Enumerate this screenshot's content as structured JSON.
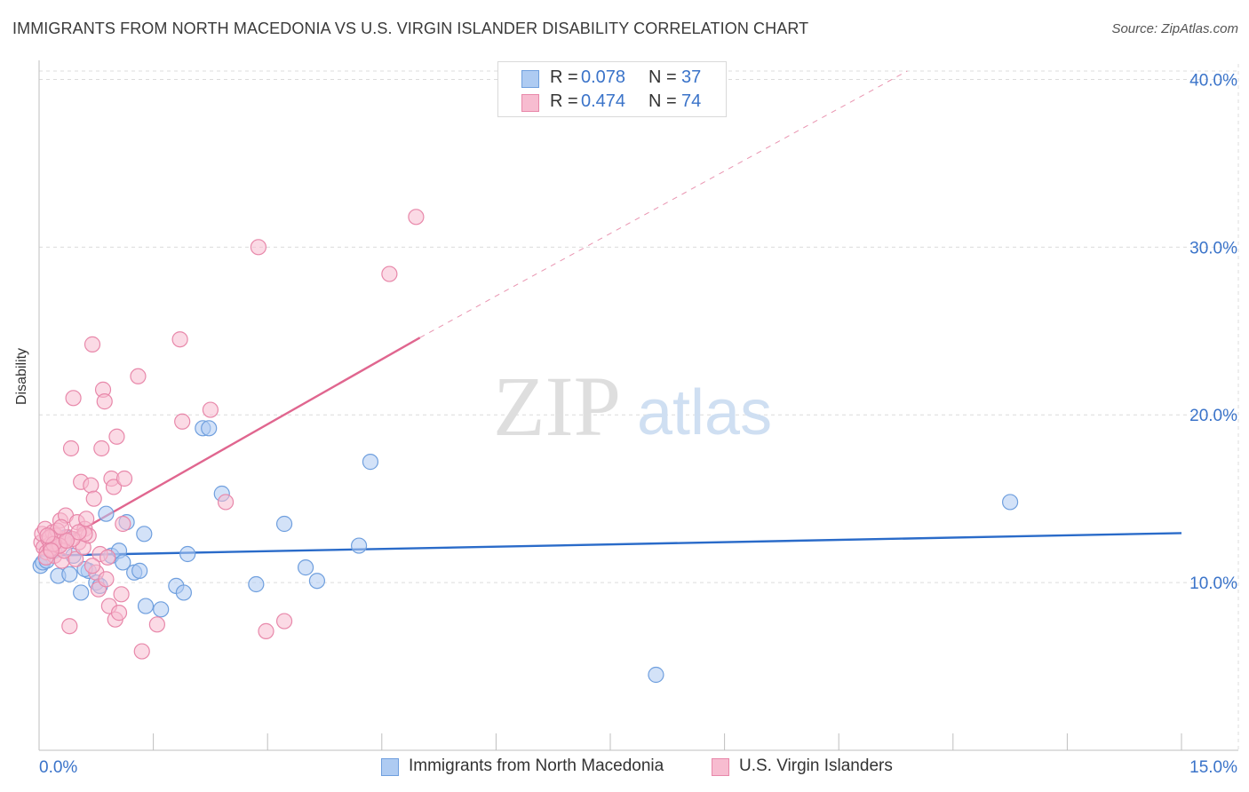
{
  "title": "IMMIGRANTS FROM NORTH MACEDONIA VS U.S. VIRGIN ISLANDER DISABILITY CORRELATION CHART",
  "source": "Source: ZipAtlas.com",
  "watermark": {
    "zip": "ZIP",
    "atlas": "atlas"
  },
  "colors": {
    "blue_fill": "#aecbf2",
    "blue_stroke": "#6f9fde",
    "blue_line": "#2a6bc9",
    "pink_fill": "#f7bcd0",
    "pink_stroke": "#e888aa",
    "pink_line": "#e0668f",
    "grid": "#dcdcdc",
    "tick_text": "#3a73c9"
  },
  "legend": {
    "series": [
      {
        "r_label": "R =",
        "r_value": "0.078",
        "n_label": "N =",
        "n_value": "37"
      },
      {
        "r_label": "R =",
        "r_value": "0.474",
        "n_label": "N =",
        "n_value": "74"
      }
    ]
  },
  "bottom_legend": [
    "Immigrants from North Macedonia",
    "U.S. Virgin Islanders"
  ],
  "chart_data": {
    "type": "scatter",
    "title": "IMMIGRANTS FROM NORTH MACEDONIA VS U.S. VIRGIN ISLANDER DISABILITY CORRELATION CHART",
    "xlabel": "",
    "ylabel": "Disability",
    "xlim": [
      0,
      15
    ],
    "ylim": [
      0,
      40.5
    ],
    "x_tick_labels": [
      {
        "value": 0,
        "label": "0.0%"
      },
      {
        "value": 15,
        "label": "15.0%"
      }
    ],
    "y_tick_labels": [
      {
        "value": 10,
        "label": "10.0%"
      },
      {
        "value": 20,
        "label": "20.0%"
      },
      {
        "value": 30,
        "label": "30.0%"
      },
      {
        "value": 40,
        "label": "40.0%"
      }
    ],
    "y_gridlines": [
      10,
      20,
      30,
      40
    ],
    "x_minor_ticks": [
      0,
      1.5,
      3,
      4.5,
      6,
      7.5,
      9,
      10.5,
      12,
      13.5,
      15
    ],
    "grid": true,
    "series": [
      {
        "name": "Immigrants from North Macedonia",
        "color": "blue",
        "r": 0.078,
        "n": 37,
        "trendline": {
          "x": [
            0,
            15
          ],
          "y": [
            11.6,
            12.95
          ],
          "dashed_extension": false
        },
        "points": [
          [
            0.02,
            11.0
          ],
          [
            0.05,
            11.2
          ],
          [
            0.1,
            11.3
          ],
          [
            0.2,
            11.9
          ],
          [
            0.25,
            10.4
          ],
          [
            0.35,
            12.7
          ],
          [
            0.4,
            10.5
          ],
          [
            0.45,
            11.6
          ],
          [
            0.55,
            9.4
          ],
          [
            0.65,
            10.7
          ],
          [
            0.75,
            10.0
          ],
          [
            0.8,
            9.8
          ],
          [
            0.88,
            14.1
          ],
          [
            0.95,
            11.6
          ],
          [
            1.05,
            11.9
          ],
          [
            1.1,
            11.2
          ],
          [
            1.15,
            13.6
          ],
          [
            1.25,
            10.6
          ],
          [
            1.32,
            10.7
          ],
          [
            1.4,
            8.6
          ],
          [
            1.38,
            12.9
          ],
          [
            1.6,
            8.4
          ],
          [
            1.8,
            9.8
          ],
          [
            1.9,
            9.4
          ],
          [
            1.95,
            11.7
          ],
          [
            2.15,
            19.2
          ],
          [
            2.23,
            19.2
          ],
          [
            2.4,
            15.3
          ],
          [
            2.85,
            9.9
          ],
          [
            3.22,
            13.5
          ],
          [
            3.5,
            10.9
          ],
          [
            3.65,
            10.1
          ],
          [
            4.2,
            12.2
          ],
          [
            4.35,
            17.2
          ],
          [
            8.1,
            4.5
          ],
          [
            12.75,
            14.8
          ],
          [
            0.6,
            10.8
          ]
        ]
      },
      {
        "name": "U.S. Virgin Islanders",
        "color": "pink",
        "r": 0.474,
        "n": 74,
        "trendline": {
          "x": [
            0,
            5.0
          ],
          "y": [
            11.7,
            24.6
          ],
          "dashed_extension": true,
          "dashed_to": [
            11.4,
            40.5
          ]
        },
        "points": [
          [
            0.03,
            12.4
          ],
          [
            0.04,
            12.9
          ],
          [
            0.06,
            12.1
          ],
          [
            0.08,
            13.2
          ],
          [
            0.1,
            11.8
          ],
          [
            0.12,
            12.6
          ],
          [
            0.15,
            12.3
          ],
          [
            0.18,
            13.0
          ],
          [
            0.2,
            11.6
          ],
          [
            0.22,
            12.8
          ],
          [
            0.25,
            12.2
          ],
          [
            0.28,
            13.7
          ],
          [
            0.3,
            11.3
          ],
          [
            0.32,
            12.5
          ],
          [
            0.35,
            14.0
          ],
          [
            0.38,
            12.7
          ],
          [
            0.4,
            7.4
          ],
          [
            0.42,
            18.0
          ],
          [
            0.45,
            21.0
          ],
          [
            0.48,
            11.4
          ],
          [
            0.5,
            13.6
          ],
          [
            0.52,
            12.4
          ],
          [
            0.55,
            16.0
          ],
          [
            0.58,
            12.1
          ],
          [
            0.6,
            13.2
          ],
          [
            0.62,
            13.8
          ],
          [
            0.65,
            12.8
          ],
          [
            0.68,
            15.8
          ],
          [
            0.7,
            24.2
          ],
          [
            0.72,
            15.0
          ],
          [
            0.75,
            10.6
          ],
          [
            0.78,
            9.6
          ],
          [
            0.8,
            11.7
          ],
          [
            0.82,
            18.0
          ],
          [
            0.84,
            21.5
          ],
          [
            0.86,
            20.8
          ],
          [
            0.88,
            10.2
          ],
          [
            0.9,
            11.5
          ],
          [
            0.92,
            8.6
          ],
          [
            0.95,
            16.2
          ],
          [
            0.98,
            15.7
          ],
          [
            1.0,
            7.8
          ],
          [
            1.02,
            18.7
          ],
          [
            1.05,
            8.2
          ],
          [
            1.08,
            9.3
          ],
          [
            1.1,
            13.5
          ],
          [
            1.12,
            16.2
          ],
          [
            1.3,
            22.3
          ],
          [
            1.35,
            5.9
          ],
          [
            1.55,
            7.5
          ],
          [
            1.85,
            24.5
          ],
          [
            1.88,
            19.6
          ],
          [
            2.25,
            20.3
          ],
          [
            2.45,
            14.8
          ],
          [
            2.88,
            30.0
          ],
          [
            2.98,
            7.1
          ],
          [
            3.22,
            7.7
          ],
          [
            4.6,
            28.4
          ],
          [
            4.95,
            31.8
          ],
          [
            0.6,
            12.9
          ],
          [
            0.15,
            12.0
          ],
          [
            0.24,
            13.1
          ],
          [
            0.33,
            11.9
          ],
          [
            0.44,
            12.6
          ],
          [
            0.14,
            12.7
          ],
          [
            0.52,
            13.0
          ],
          [
            0.27,
            12.2
          ],
          [
            0.09,
            11.5
          ],
          [
            0.19,
            12.3
          ],
          [
            0.36,
            12.5
          ],
          [
            0.7,
            11.0
          ],
          [
            0.16,
            11.9
          ],
          [
            0.29,
            13.3
          ],
          [
            0.11,
            12.8
          ]
        ]
      }
    ]
  }
}
